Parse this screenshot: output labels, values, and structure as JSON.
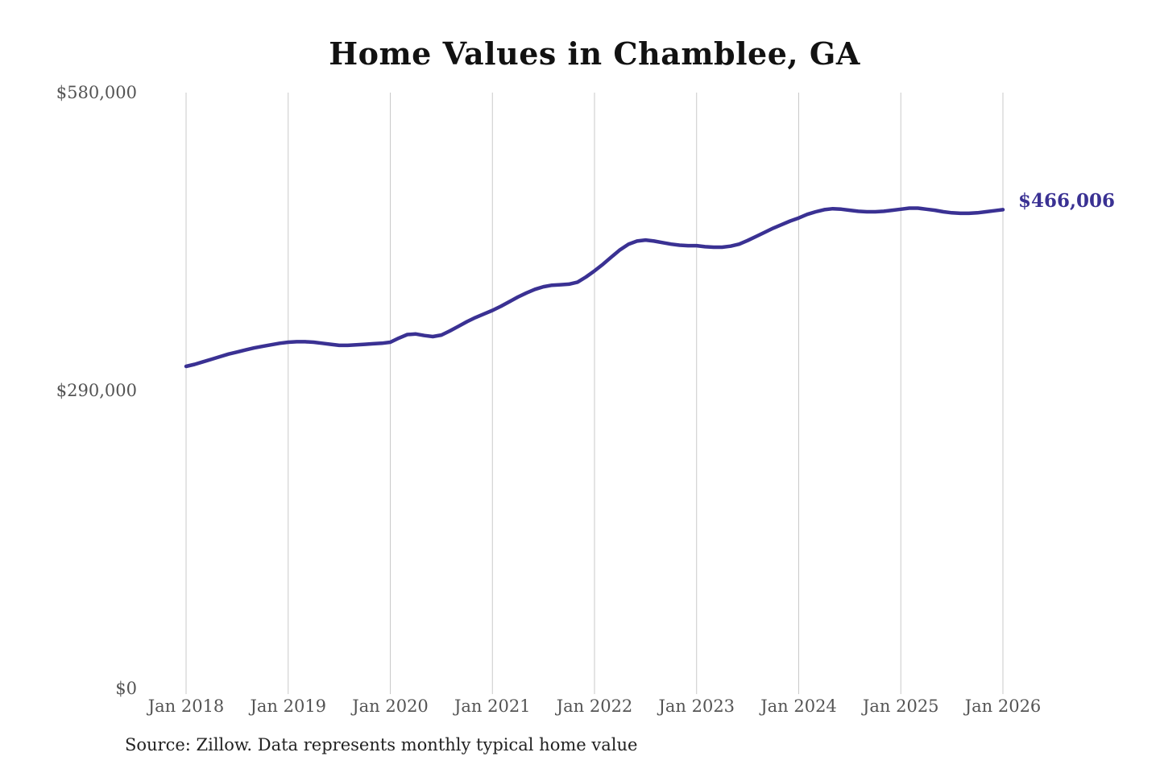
{
  "title": "Home Values in Chamblee, GA",
  "annotation": {
    "end_value_label": "$466,006"
  },
  "source_note": "Source: Zillow. Data represents monthly typical home value",
  "colors": {
    "background": "#ffffff",
    "line": "#3a3193",
    "end_label": "#3a3193",
    "grid": "#c9c9c9",
    "axis_text": "#545454",
    "title_text": "#121212",
    "source_text": "#222222"
  },
  "chart_data": {
    "type": "line",
    "title": "Home Values in Chamblee, GA",
    "xlabel": "",
    "ylabel": "",
    "x_tick_labels": [
      "Jan 2018",
      "Jan 2019",
      "Jan 2020",
      "Jan 2021",
      "Jan 2022",
      "Jan 2023",
      "Jan 2024",
      "Jan 2025",
      "Jan 2026"
    ],
    "y_ticks": [
      {
        "value": 0,
        "label": "$0"
      },
      {
        "value": 290000,
        "label": "$290,000"
      },
      {
        "value": 580000,
        "label": "$580,000"
      }
    ],
    "ylim": [
      0,
      580000
    ],
    "grid": "vertical",
    "legend": "none",
    "end_value": 466006,
    "series": [
      {
        "name": "Typical home value",
        "start": "2018-01",
        "frequency": "monthly",
        "values": [
          313500,
          315500,
          318000,
          320500,
          323000,
          325500,
          327500,
          329500,
          331500,
          333000,
          334500,
          336000,
          337000,
          337500,
          337500,
          337000,
          336000,
          335000,
          334000,
          334000,
          334500,
          335000,
          335500,
          336000,
          337000,
          341000,
          344500,
          345000,
          343500,
          342500,
          344000,
          348000,
          352500,
          357000,
          361000,
          364500,
          368000,
          372000,
          376500,
          381000,
          385000,
          388500,
          391000,
          392500,
          393000,
          393500,
          395500,
          400500,
          406500,
          413000,
          420000,
          427000,
          432500,
          435500,
          436500,
          435500,
          434000,
          432500,
          431500,
          431000,
          431000,
          430000,
          429500,
          429500,
          430500,
          432500,
          436000,
          440000,
          444000,
          448000,
          451500,
          455000,
          458000,
          461500,
          464000,
          466000,
          467000,
          466500,
          465500,
          464500,
          464000,
          464000,
          464500,
          465500,
          466500,
          467500,
          467500,
          466500,
          465500,
          464000,
          463000,
          462500,
          462500,
          463000,
          464000,
          465000,
          466006
        ]
      }
    ]
  }
}
